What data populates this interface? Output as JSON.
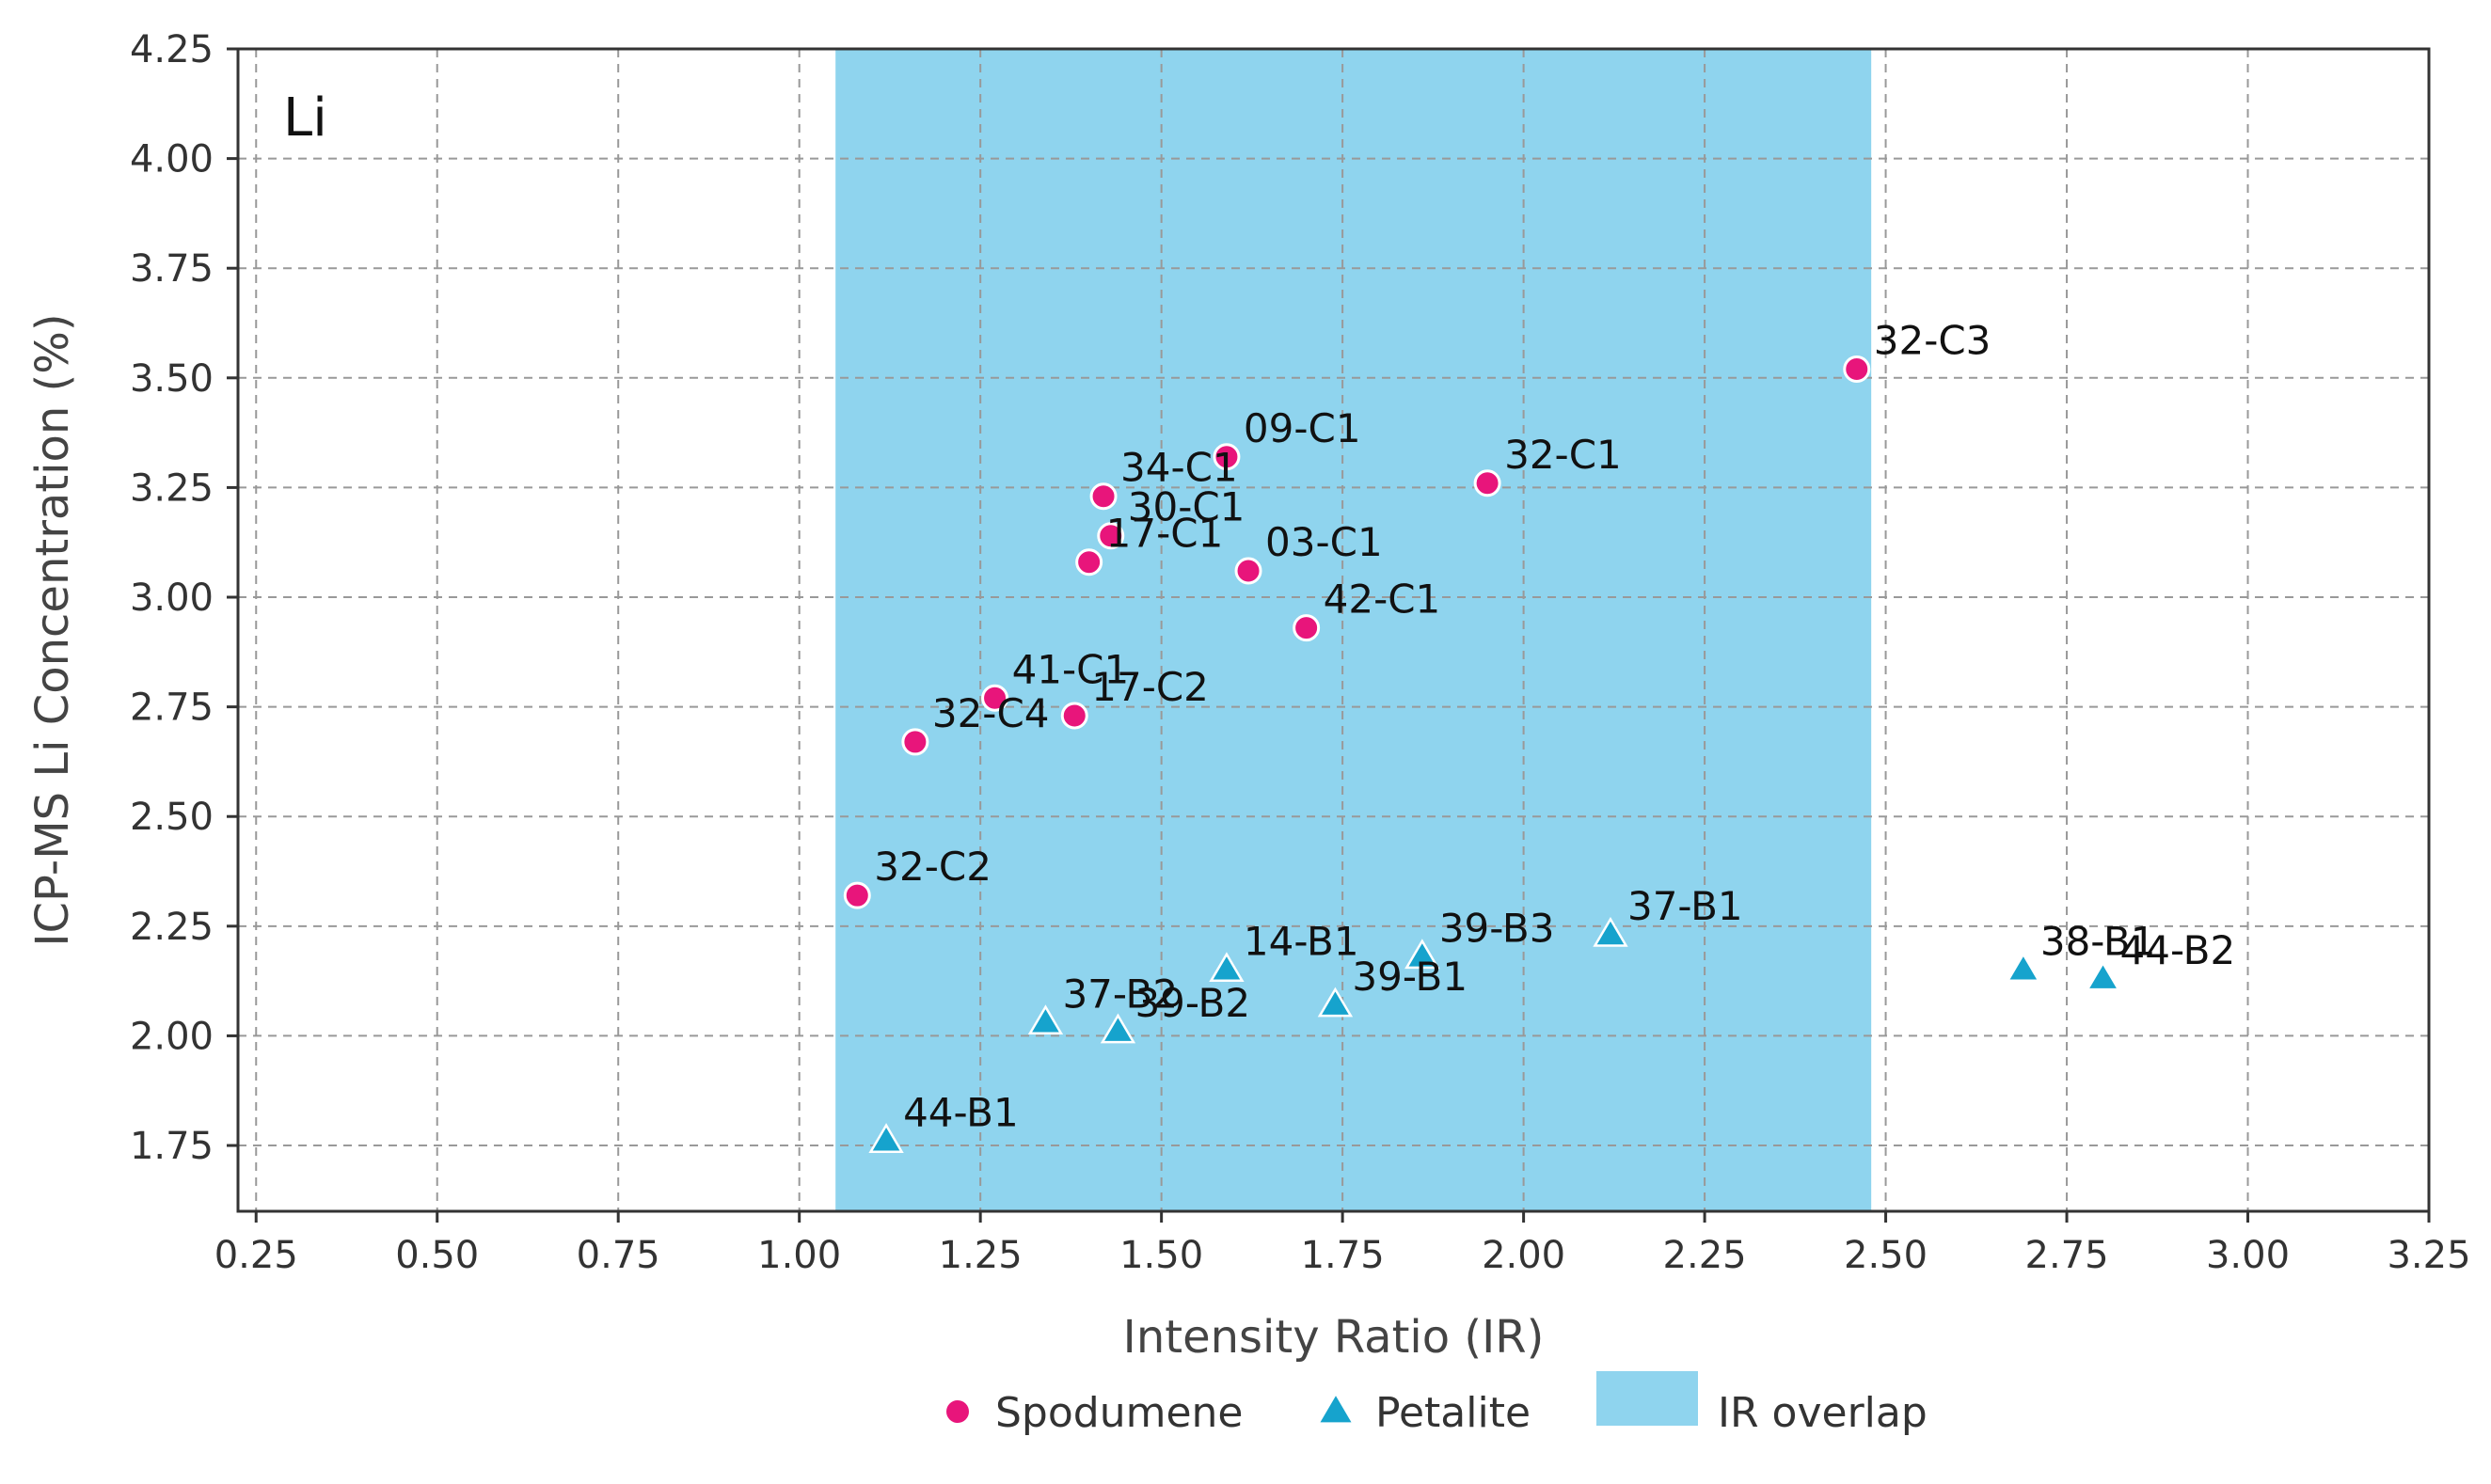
{
  "chart_data": {
    "type": "scatter",
    "panel_label": "Li",
    "xlabel": "Intensity Ratio (IR)",
    "ylabel": "ICP-MS Li Concentration (%)",
    "xlim": [
      0.225,
      3.25
    ],
    "ylim": [
      1.6,
      4.25
    ],
    "xticks": [
      "0.25",
      "0.50",
      "0.75",
      "1.00",
      "1.25",
      "1.50",
      "1.75",
      "2.00",
      "2.25",
      "2.50",
      "2.75",
      "3.00",
      "3.25"
    ],
    "yticks": [
      "1.75",
      "2.00",
      "2.25",
      "2.50",
      "2.75",
      "3.00",
      "3.25",
      "3.50",
      "3.75",
      "4.00",
      "4.25"
    ],
    "grid": true,
    "overlap_region": {
      "name": "IR overlap",
      "x_start": 1.05,
      "x_end": 2.48,
      "color": "#8fd4ee"
    },
    "series": [
      {
        "name": "Spodumene",
        "marker": "circle",
        "color": "#e8157b",
        "points": [
          {
            "label": "32-C3",
            "x": 2.46,
            "y": 3.52
          },
          {
            "label": "09-C1",
            "x": 1.59,
            "y": 3.32
          },
          {
            "label": "32-C1",
            "x": 1.95,
            "y": 3.26
          },
          {
            "label": "34-C1",
            "x": 1.42,
            "y": 3.23
          },
          {
            "label": "30-C1",
            "x": 1.43,
            "y": 3.14
          },
          {
            "label": "17-C1",
            "x": 1.4,
            "y": 3.08
          },
          {
            "label": "03-C1",
            "x": 1.62,
            "y": 3.06
          },
          {
            "label": "42-C1",
            "x": 1.7,
            "y": 2.93
          },
          {
            "label": "41-C1",
            "x": 1.27,
            "y": 2.77
          },
          {
            "label": "17-C2",
            "x": 1.38,
            "y": 2.73
          },
          {
            "label": "32-C4",
            "x": 1.16,
            "y": 2.67
          },
          {
            "label": "32-C2",
            "x": 1.08,
            "y": 2.32
          }
        ]
      },
      {
        "name": "Petalite",
        "marker": "triangle",
        "color": "#16a3cd",
        "points": [
          {
            "label": "37-B1",
            "x": 2.12,
            "y": 2.23
          },
          {
            "label": "39-B3",
            "x": 1.86,
            "y": 2.18
          },
          {
            "label": "14-B1",
            "x": 1.59,
            "y": 2.15
          },
          {
            "label": "38-B1",
            "x": 2.69,
            "y": 2.15
          },
          {
            "label": "44-B2",
            "x": 2.8,
            "y": 2.13
          },
          {
            "label": "39-B1",
            "x": 1.74,
            "y": 2.07
          },
          {
            "label": "37-B2",
            "x": 1.34,
            "y": 2.03
          },
          {
            "label": "39-B2",
            "x": 1.44,
            "y": 2.01
          },
          {
            "label": "44-B1",
            "x": 1.12,
            "y": 1.76
          }
        ]
      }
    ],
    "legend": {
      "position": "bottom",
      "entries": [
        "Spodumene",
        "Petalite",
        "IR overlap"
      ]
    }
  }
}
